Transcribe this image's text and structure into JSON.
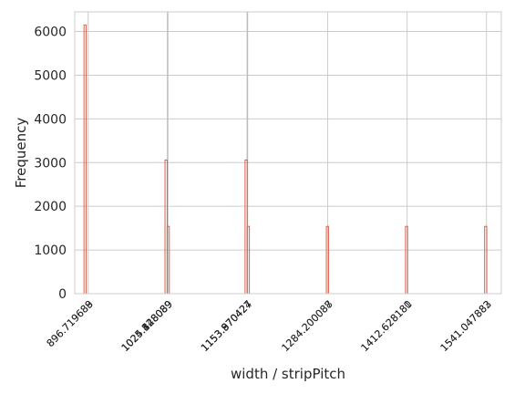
{
  "chart_data": {
    "type": "bar",
    "title": "",
    "xlabel": "width / stripPitch",
    "ylabel": "Frequency",
    "xlim": [
      875.0,
      1565.0
    ],
    "ylim": [
      0,
      6450
    ],
    "grid": true,
    "y_ticks": [
      0,
      1000,
      2000,
      3000,
      4000,
      5000,
      6000
    ],
    "x_tick_groups": [
      {
        "x": 896.7,
        "labels": [
          "896.719689",
          "896.719688"
        ]
      },
      {
        "x": 1025.1,
        "labels": [
          "1024.828089",
          "1025.128089",
          "1025.428089",
          "1025.548089"
        ]
      },
      {
        "x": 1153.7,
        "labels": [
          "1153.570427",
          "1153.870427",
          "1153.970427",
          "1153.970424"
        ]
      },
      {
        "x": 1284.2,
        "labels": [
          "1284.200087",
          "1284.200088"
        ]
      },
      {
        "x": 1412.6,
        "labels": [
          "1412.628180",
          "1412.628181"
        ]
      },
      {
        "x": 1541.0,
        "labels": [
          "1541.047882",
          "1541.047883"
        ]
      }
    ],
    "series": [
      {
        "color": "#d9614e",
        "bins": [
          {
            "x0": 890.0,
            "x1": 893.5,
            "value": 6150
          },
          {
            "x0": 1021.0,
            "x1": 1024.5,
            "value": 3060
          },
          {
            "x0": 1024.5,
            "x1": 1028.0,
            "value": 1540
          },
          {
            "x0": 1150.5,
            "x1": 1154.0,
            "value": 3060
          },
          {
            "x0": 1154.0,
            "x1": 1157.5,
            "value": 1540
          },
          {
            "x0": 1282.0,
            "x1": 1285.5,
            "value": 1540
          },
          {
            "x0": 1410.0,
            "x1": 1413.5,
            "value": 1540
          },
          {
            "x0": 1538.0,
            "x1": 1541.5,
            "value": 1540
          }
        ]
      }
    ],
    "guide_color": "#bdbdbd",
    "guides": [
      1025.3,
      1154.3
    ]
  }
}
